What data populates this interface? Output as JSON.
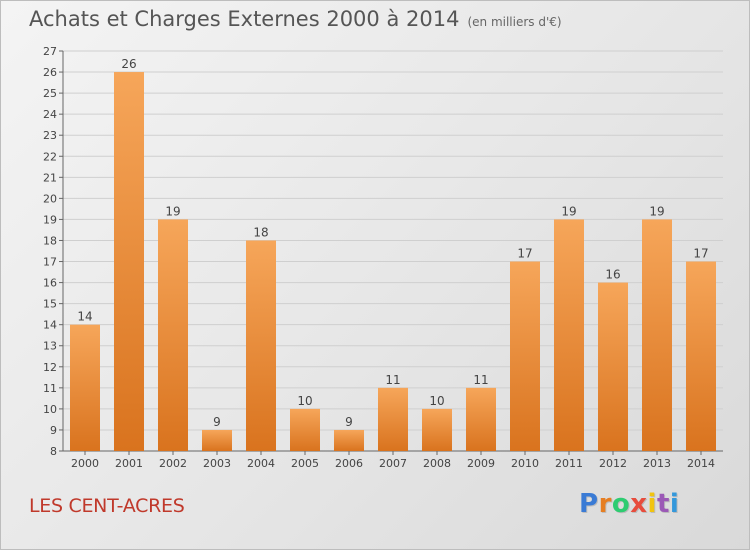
{
  "header": {
    "title": "Achats et Charges Externes 2000 à 2014",
    "subtitle": "(en milliers d'€)"
  },
  "footer": {
    "commune": "LES CENT-ACRES",
    "logo_text": "Proxiti",
    "logo_colors": [
      "#3a7bd5",
      "#e67e22",
      "#2ecc71",
      "#e74c3c",
      "#f1c40f",
      "#9b59b6",
      "#3498db"
    ]
  },
  "colors": {
    "bar_top": "#f6a65a",
    "bar_bottom": "#d9731e",
    "grid": "#cfcfcf",
    "axis_text": "#444444"
  },
  "chart_data": {
    "type": "bar",
    "title": "Achats et Charges Externes 2000 à 2014",
    "subtitle": "(en milliers d'€)",
    "categories": [
      "2000",
      "2001",
      "2002",
      "2003",
      "2004",
      "2005",
      "2006",
      "2007",
      "2008",
      "2009",
      "2010",
      "2011",
      "2012",
      "2013",
      "2014"
    ],
    "values": [
      14,
      26,
      19,
      9,
      18,
      10,
      9,
      11,
      10,
      11,
      17,
      19,
      16,
      19,
      17
    ],
    "data_labels": [
      "14",
      "26",
      "19",
      "9",
      "18",
      "10",
      "9",
      "11",
      "10",
      "11",
      "17",
      "19",
      "16",
      "19",
      "17"
    ],
    "ylim": [
      8,
      27
    ],
    "yticks": [
      8,
      9,
      10,
      11,
      12,
      13,
      14,
      15,
      16,
      17,
      18,
      19,
      20,
      21,
      22,
      23,
      24,
      25,
      26,
      27
    ],
    "grid": true
  }
}
